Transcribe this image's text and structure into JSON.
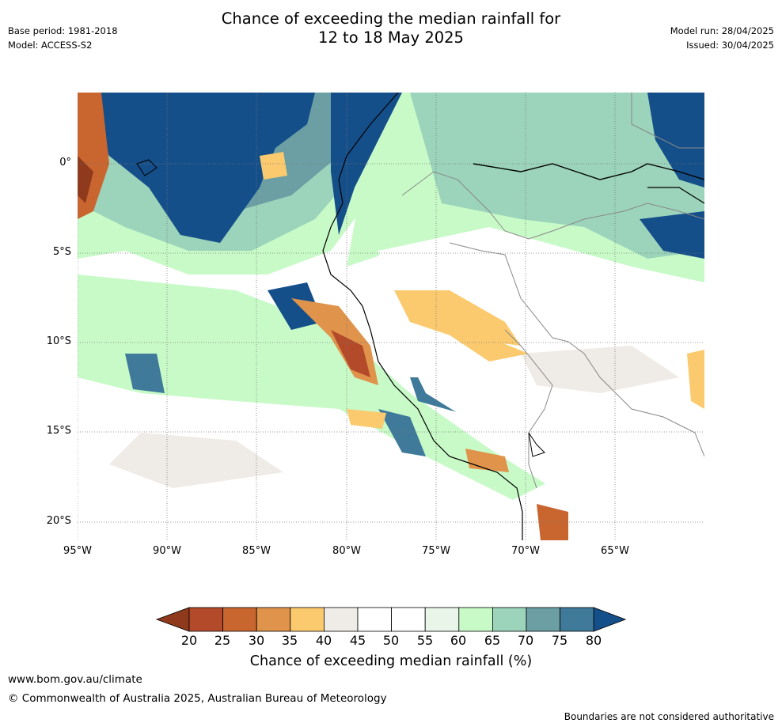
{
  "header": {
    "title": "Chance of exceeding the median rainfall for\n12 to 18 May 2025",
    "base_period": "Base period: 1981-2018",
    "model": "Model: ACCESS-S2",
    "model_run": "Model run: 28/04/2025",
    "issued": "Issued: 30/04/2025"
  },
  "map": {
    "lat_ticks": [
      "0°",
      "5°S",
      "10°S",
      "15°S",
      "20°S"
    ],
    "lon_ticks": [
      "95°W",
      "90°W",
      "85°W",
      "80°W",
      "75°W",
      "70°W",
      "65°W"
    ],
    "extent": {
      "lon_min": -95,
      "lon_max": -60,
      "lat_min": -21,
      "lat_max": 4
    }
  },
  "colorbar": {
    "label": "Chance of exceeding median rainfall (%)",
    "ticks": [
      "20",
      "25",
      "30",
      "35",
      "40",
      "45",
      "50",
      "55",
      "60",
      "65",
      "70",
      "75",
      "80"
    ],
    "colors": [
      "#8f3a1c",
      "#b34a2a",
      "#c9652f",
      "#e0934a",
      "#fcca6e",
      "#efebe6",
      "#ffffff",
      "#ffffff",
      "#e9f5e9",
      "#c8fac8",
      "#9bd3bb",
      "#6b9fa4",
      "#3f7a9a",
      "#154f8a"
    ]
  },
  "footer": {
    "url": "www.bom.gov.au/climate",
    "copyright": "© Commonwealth of Australia 2025, Australian Bureau of Meteorology",
    "note": "Boundaries are not considered authoritative"
  }
}
